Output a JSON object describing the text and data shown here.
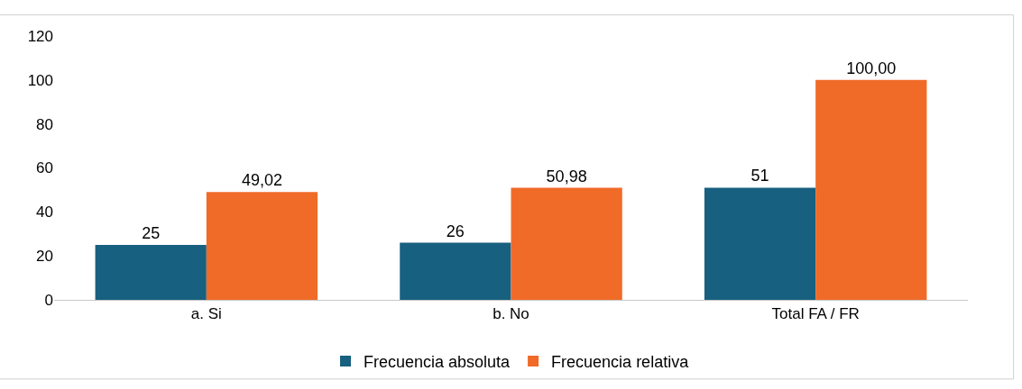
{
  "chart_data": {
    "type": "bar",
    "categories": [
      "a. Si",
      "b. No",
      "Total FA / FR"
    ],
    "series": [
      {
        "name": "Frecuencia absoluta",
        "color": "#17607f",
        "values": [
          25,
          26,
          51
        ],
        "value_labels": [
          "25",
          "26",
          "51"
        ]
      },
      {
        "name": "Frecuencia relativa",
        "color": "#f06a28",
        "values": [
          49.02,
          50.98,
          100.0
        ],
        "value_labels": [
          "49,02",
          "50,98",
          "100,00"
        ]
      }
    ],
    "ylim": [
      0,
      120
    ],
    "yticks": [
      0,
      20,
      40,
      60,
      80,
      100,
      120
    ],
    "legend": "bottom"
  }
}
